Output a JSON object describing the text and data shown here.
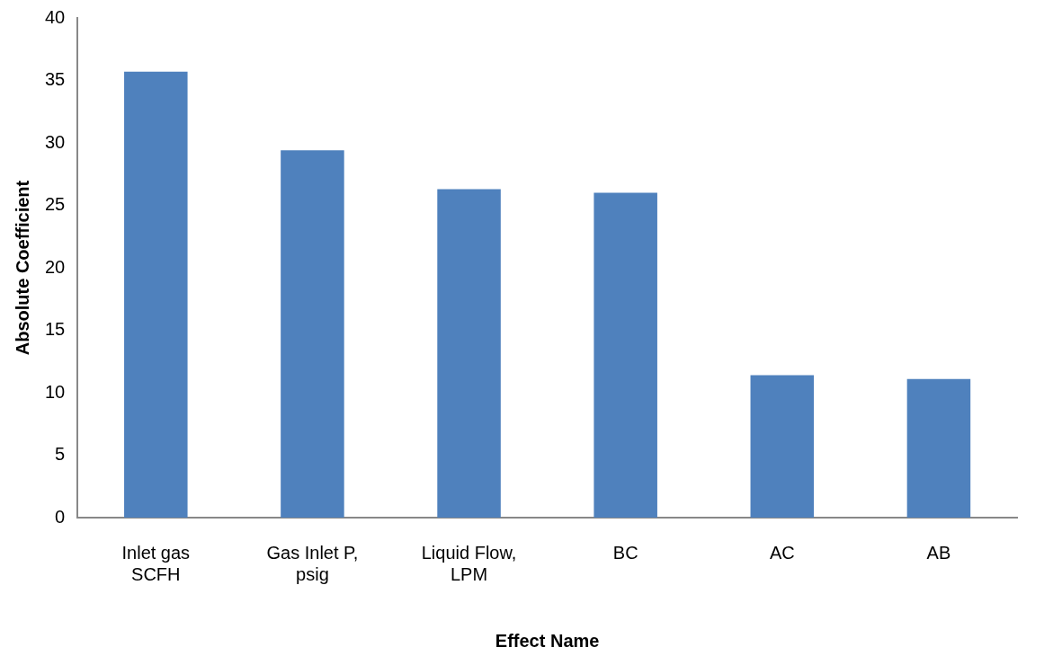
{
  "chart_data": {
    "type": "bar",
    "xlabel": "Effect Name",
    "ylabel": "Absolute Coefficient",
    "categories": [
      "Inlet gas SCFH",
      "Gas Inlet P, psig",
      "Liquid Flow, LPM",
      "BC",
      "AC",
      "AB"
    ],
    "values": [
      35.7,
      29.4,
      26.3,
      26.0,
      11.4,
      11.1
    ],
    "color": "#4f81bd",
    "ylim": [
      0,
      40
    ],
    "yticks": [
      0,
      5,
      10,
      15,
      20,
      25,
      30,
      35,
      40
    ],
    "grid": false,
    "legend": false
  }
}
